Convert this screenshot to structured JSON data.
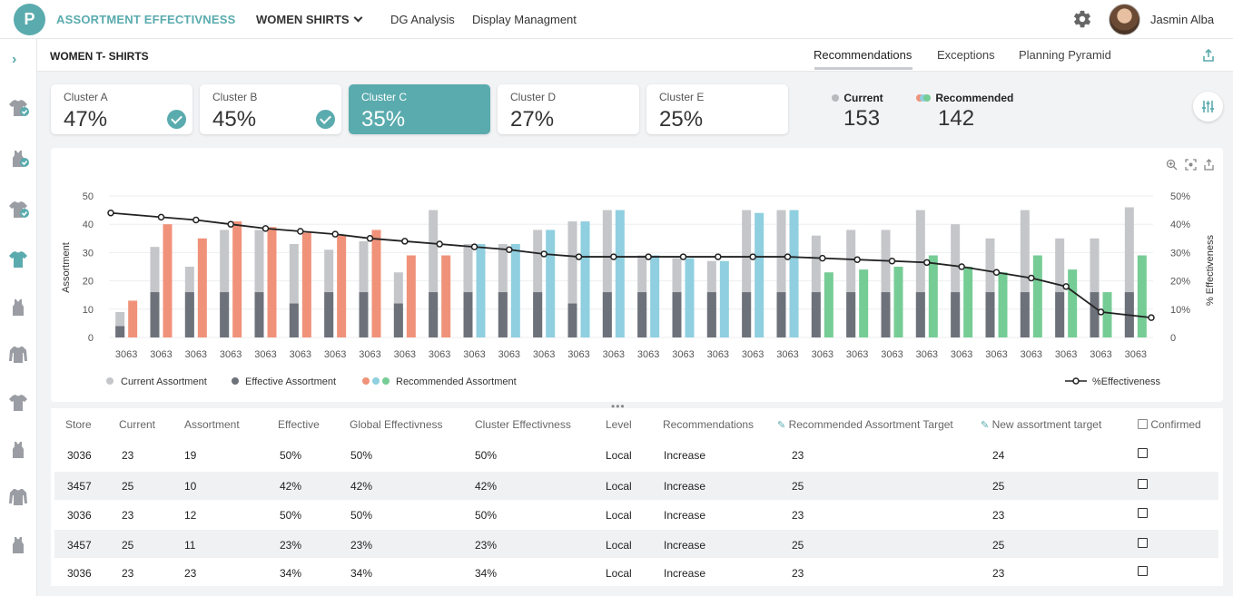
{
  "app": {
    "logo_letter": "P",
    "title": "ASSORTMENT EFFECTIVNESS",
    "category": "WOMEN SHIRTS",
    "nav": [
      "DG Analysis",
      "Display Managment"
    ]
  },
  "user": {
    "name": "Jasmin Alba"
  },
  "section": {
    "title": "WOMEN T- SHIRTS",
    "tabs": [
      "Recommendations",
      "Exceptions",
      "Planning Pyramid"
    ],
    "active_tab": "Recommendations"
  },
  "clusters": [
    {
      "name": "Cluster A",
      "value": "47%",
      "checked": true,
      "selected": false
    },
    {
      "name": "Cluster B",
      "value": "45%",
      "checked": true,
      "selected": false
    },
    {
      "name": "Cluster C",
      "value": "35%",
      "checked": false,
      "selected": true
    },
    {
      "name": "Cluster D",
      "value": "27%",
      "checked": false,
      "selected": false
    },
    {
      "name": "Cluster E",
      "value": "25%",
      "checked": false,
      "selected": false
    }
  ],
  "summary": {
    "current_label": "Current",
    "current_value": "153",
    "recommended_label": "Recommended",
    "recommended_value": "142"
  },
  "colors": {
    "accent": "#5aabae",
    "current": "#c4c6ca",
    "effective": "#6d717a",
    "rec_orange": "#f0927a",
    "rec_blue": "#8fcfe0",
    "rec_green": "#76cc95",
    "line": "#222222"
  },
  "chart_data": {
    "type": "bar",
    "ylabel": "Assortment",
    "y2label": "% Effectiveness",
    "ylim": [
      0,
      50
    ],
    "y2lim": [
      0,
      50
    ],
    "yticks": [
      "0",
      "10",
      "20",
      "30",
      "40",
      "50"
    ],
    "y2ticks": [
      "0",
      "10%",
      "20%",
      "30%",
      "40%",
      "50%"
    ],
    "categories": [
      "3063",
      "3063",
      "3063",
      "3063",
      "3063",
      "3063",
      "3063",
      "3063",
      "3063",
      "3063",
      "3063",
      "3063",
      "3063",
      "3063",
      "3063",
      "3063",
      "3063",
      "3063",
      "3063",
      "3063",
      "3063",
      "3063",
      "3063",
      "3063",
      "3063",
      "3063",
      "3063",
      "3063",
      "3063",
      "3063"
    ],
    "series": [
      {
        "name": "Current Assortment",
        "values": [
          9,
          32,
          25,
          38,
          38,
          33,
          31,
          34,
          23,
          45,
          33,
          33,
          38,
          41,
          45,
          29,
          28,
          27,
          45,
          45,
          36,
          38,
          38,
          45,
          40,
          35,
          45,
          35,
          35,
          46
        ]
      },
      {
        "name": "Effective Assortment",
        "values": [
          4,
          16,
          16,
          16,
          16,
          12,
          16,
          16,
          12,
          16,
          16,
          16,
          16,
          12,
          16,
          16,
          16,
          16,
          16,
          16,
          16,
          16,
          16,
          16,
          16,
          16,
          16,
          16,
          16,
          16
        ]
      },
      {
        "name": "Recommended Assortment",
        "values": [
          13,
          40,
          35,
          41,
          39,
          37,
          36,
          38,
          29,
          29,
          33,
          33,
          38,
          41,
          45,
          29,
          28,
          27,
          44,
          45,
          23,
          24,
          25,
          29,
          25,
          23,
          29,
          24,
          16,
          29
        ],
        "colors": [
          "orange",
          "orange",
          "orange",
          "orange",
          "orange",
          "orange",
          "orange",
          "orange",
          "orange",
          "orange",
          "blue",
          "blue",
          "blue",
          "blue",
          "blue",
          "blue",
          "blue",
          "blue",
          "blue",
          "blue",
          "green",
          "green",
          "green",
          "green",
          "green",
          "green",
          "green",
          "green",
          "green",
          "green"
        ]
      },
      {
        "name": "%Effectiveness",
        "type": "line",
        "values": [
          44,
          42.5,
          41.5,
          40,
          38.5,
          37.5,
          36.5,
          35,
          34,
          33,
          32,
          31,
          29.5,
          28.5,
          28.5,
          28.5,
          28.5,
          28.5,
          28.5,
          28.5,
          28,
          27.5,
          27,
          26.5,
          25,
          23,
          21,
          18,
          9,
          7
        ]
      }
    ],
    "legend": [
      "Current Assortment",
      "Effective Assortment",
      "Recommended Assortment",
      "%Effectiveness"
    ],
    "legend_position": "bottom"
  },
  "table": {
    "headers": [
      "Store",
      "Current",
      "Assortment",
      "Effective",
      "Global Effectivness",
      "Cluster Effectivness",
      "Level",
      "Recommendations",
      "Recommended Assortment Target",
      "New assortment target",
      "Confirmed"
    ],
    "rows": [
      [
        "3036",
        "23",
        "19",
        "50%",
        "50%",
        "50%",
        "Local",
        "Increase",
        "23",
        "24"
      ],
      [
        "3457",
        "25",
        "10",
        "42%",
        "42%",
        "42%",
        "Local",
        "Increase",
        "25",
        "25"
      ],
      [
        "3036",
        "23",
        "12",
        "50%",
        "50%",
        "50%",
        "Local",
        "Increase",
        "23",
        "23"
      ],
      [
        "3457",
        "25",
        "11",
        "23%",
        "23%",
        "23%",
        "Local",
        "Increase",
        "25",
        "25"
      ],
      [
        "3036",
        "23",
        "23",
        "34%",
        "34%",
        "34%",
        "Local",
        "Increase",
        "23",
        "23"
      ]
    ]
  },
  "icons": [
    "chevron-right-icon",
    "gear-icon",
    "share-icon",
    "sliders-icon",
    "zoom-icon",
    "screenshot-icon",
    "pencil-icon",
    "shirt-icon",
    "tank-top-icon"
  ]
}
